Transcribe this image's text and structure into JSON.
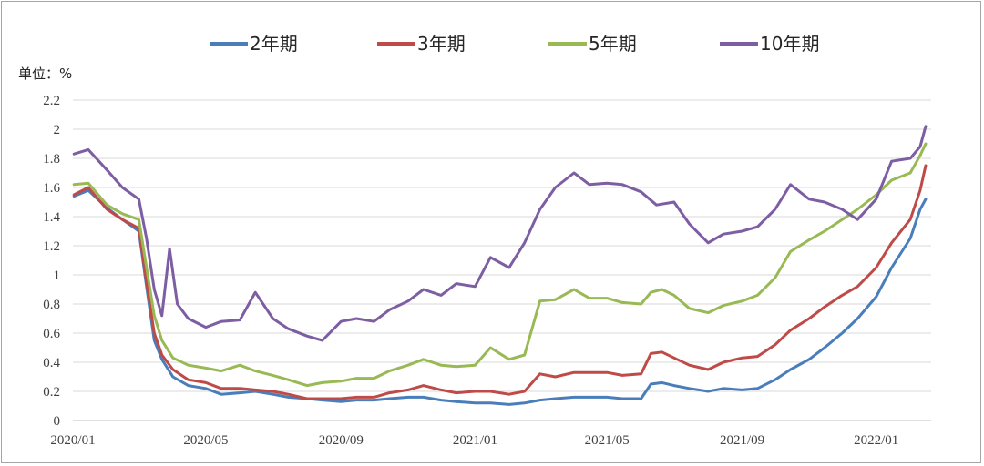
{
  "chart_data": {
    "type": "line",
    "unit_label": "单位：%",
    "x_tick_labels": [
      "2020/01",
      "2020/05",
      "2020/09",
      "2021/01",
      "2021/05",
      "2021/09",
      "2022/01"
    ],
    "x_range": [
      "2020-01",
      "2022-02"
    ],
    "ylim": [
      0,
      2.2
    ],
    "y_ticks": [
      "0",
      "0.2",
      "0.4",
      "0.6",
      "0.8",
      "1",
      "1.2",
      "1.4",
      "1.6",
      "1.8",
      "2",
      "2.2"
    ],
    "grid": "horizontal",
    "legend_position": "top",
    "series": [
      {
        "name": "2年期",
        "color": "#4a7ebb",
        "points": [
          [
            "2020-01-02",
            1.54
          ],
          [
            "2020-01-15",
            1.58
          ],
          [
            "2020-02-01",
            1.46
          ],
          [
            "2020-02-15",
            1.38
          ],
          [
            "2020-03-01",
            1.3
          ],
          [
            "2020-03-08",
            0.92
          ],
          [
            "2020-03-15",
            0.55
          ],
          [
            "2020-03-22",
            0.42
          ],
          [
            "2020-04-01",
            0.3
          ],
          [
            "2020-04-15",
            0.24
          ],
          [
            "2020-05-01",
            0.22
          ],
          [
            "2020-05-15",
            0.18
          ],
          [
            "2020-06-01",
            0.19
          ],
          [
            "2020-06-15",
            0.2
          ],
          [
            "2020-07-01",
            0.18
          ],
          [
            "2020-07-15",
            0.16
          ],
          [
            "2020-08-01",
            0.15
          ],
          [
            "2020-08-15",
            0.14
          ],
          [
            "2020-09-01",
            0.13
          ],
          [
            "2020-09-15",
            0.14
          ],
          [
            "2020-10-01",
            0.14
          ],
          [
            "2020-10-15",
            0.15
          ],
          [
            "2020-11-01",
            0.16
          ],
          [
            "2020-11-15",
            0.16
          ],
          [
            "2020-12-01",
            0.14
          ],
          [
            "2020-12-15",
            0.13
          ],
          [
            "2021-01-01",
            0.12
          ],
          [
            "2021-01-15",
            0.12
          ],
          [
            "2021-02-01",
            0.11
          ],
          [
            "2021-02-15",
            0.12
          ],
          [
            "2021-03-01",
            0.14
          ],
          [
            "2021-03-15",
            0.15
          ],
          [
            "2021-04-01",
            0.16
          ],
          [
            "2021-04-15",
            0.16
          ],
          [
            "2021-05-01",
            0.16
          ],
          [
            "2021-05-15",
            0.15
          ],
          [
            "2021-06-01",
            0.15
          ],
          [
            "2021-06-10",
            0.25
          ],
          [
            "2021-06-20",
            0.26
          ],
          [
            "2021-07-01",
            0.24
          ],
          [
            "2021-07-15",
            0.22
          ],
          [
            "2021-08-01",
            0.2
          ],
          [
            "2021-08-15",
            0.22
          ],
          [
            "2021-09-01",
            0.21
          ],
          [
            "2021-09-15",
            0.22
          ],
          [
            "2021-10-01",
            0.28
          ],
          [
            "2021-10-15",
            0.35
          ],
          [
            "2021-11-01",
            0.42
          ],
          [
            "2021-11-15",
            0.5
          ],
          [
            "2021-12-01",
            0.6
          ],
          [
            "2021-12-15",
            0.7
          ],
          [
            "2022-01-01",
            0.85
          ],
          [
            "2022-01-15",
            1.05
          ],
          [
            "2022-02-01",
            1.25
          ],
          [
            "2022-02-10",
            1.45
          ],
          [
            "2022-02-15",
            1.52
          ]
        ]
      },
      {
        "name": "3年期",
        "color": "#be4b48",
        "points": [
          [
            "2020-01-02",
            1.55
          ],
          [
            "2020-01-15",
            1.6
          ],
          [
            "2020-02-01",
            1.45
          ],
          [
            "2020-02-15",
            1.38
          ],
          [
            "2020-03-01",
            1.32
          ],
          [
            "2020-03-08",
            0.95
          ],
          [
            "2020-03-15",
            0.6
          ],
          [
            "2020-03-22",
            0.45
          ],
          [
            "2020-04-01",
            0.35
          ],
          [
            "2020-04-15",
            0.28
          ],
          [
            "2020-05-01",
            0.26
          ],
          [
            "2020-05-15",
            0.22
          ],
          [
            "2020-06-01",
            0.22
          ],
          [
            "2020-06-15",
            0.21
          ],
          [
            "2020-07-01",
            0.2
          ],
          [
            "2020-07-15",
            0.18
          ],
          [
            "2020-08-01",
            0.15
          ],
          [
            "2020-08-15",
            0.15
          ],
          [
            "2020-09-01",
            0.15
          ],
          [
            "2020-09-15",
            0.16
          ],
          [
            "2020-10-01",
            0.16
          ],
          [
            "2020-10-15",
            0.19
          ],
          [
            "2020-11-01",
            0.21
          ],
          [
            "2020-11-15",
            0.24
          ],
          [
            "2020-12-01",
            0.21
          ],
          [
            "2020-12-15",
            0.19
          ],
          [
            "2021-01-01",
            0.2
          ],
          [
            "2021-01-15",
            0.2
          ],
          [
            "2021-02-01",
            0.18
          ],
          [
            "2021-02-15",
            0.2
          ],
          [
            "2021-03-01",
            0.32
          ],
          [
            "2021-03-15",
            0.3
          ],
          [
            "2021-04-01",
            0.33
          ],
          [
            "2021-04-15",
            0.33
          ],
          [
            "2021-05-01",
            0.33
          ],
          [
            "2021-05-15",
            0.31
          ],
          [
            "2021-06-01",
            0.32
          ],
          [
            "2021-06-10",
            0.46
          ],
          [
            "2021-06-20",
            0.47
          ],
          [
            "2021-07-01",
            0.43
          ],
          [
            "2021-07-15",
            0.38
          ],
          [
            "2021-08-01",
            0.35
          ],
          [
            "2021-08-15",
            0.4
          ],
          [
            "2021-09-01",
            0.43
          ],
          [
            "2021-09-15",
            0.44
          ],
          [
            "2021-10-01",
            0.52
          ],
          [
            "2021-10-15",
            0.62
          ],
          [
            "2021-11-01",
            0.7
          ],
          [
            "2021-11-15",
            0.78
          ],
          [
            "2021-12-01",
            0.86
          ],
          [
            "2021-12-15",
            0.92
          ],
          [
            "2022-01-01",
            1.05
          ],
          [
            "2022-01-15",
            1.22
          ],
          [
            "2022-02-01",
            1.38
          ],
          [
            "2022-02-10",
            1.58
          ],
          [
            "2022-02-15",
            1.75
          ]
        ]
      },
      {
        "name": "5年期",
        "color": "#98b954",
        "points": [
          [
            "2020-01-02",
            1.62
          ],
          [
            "2020-01-15",
            1.63
          ],
          [
            "2020-02-01",
            1.48
          ],
          [
            "2020-02-15",
            1.42
          ],
          [
            "2020-03-01",
            1.38
          ],
          [
            "2020-03-08",
            1.05
          ],
          [
            "2020-03-15",
            0.72
          ],
          [
            "2020-03-22",
            0.55
          ],
          [
            "2020-04-01",
            0.43
          ],
          [
            "2020-04-15",
            0.38
          ],
          [
            "2020-05-01",
            0.36
          ],
          [
            "2020-05-15",
            0.34
          ],
          [
            "2020-06-01",
            0.38
          ],
          [
            "2020-06-15",
            0.34
          ],
          [
            "2020-07-01",
            0.31
          ],
          [
            "2020-07-15",
            0.28
          ],
          [
            "2020-08-01",
            0.24
          ],
          [
            "2020-08-15",
            0.26
          ],
          [
            "2020-09-01",
            0.27
          ],
          [
            "2020-09-15",
            0.29
          ],
          [
            "2020-10-01",
            0.29
          ],
          [
            "2020-10-15",
            0.34
          ],
          [
            "2020-11-01",
            0.38
          ],
          [
            "2020-11-15",
            0.42
          ],
          [
            "2020-12-01",
            0.38
          ],
          [
            "2020-12-15",
            0.37
          ],
          [
            "2021-01-01",
            0.38
          ],
          [
            "2021-01-15",
            0.5
          ],
          [
            "2021-02-01",
            0.42
          ],
          [
            "2021-02-15",
            0.45
          ],
          [
            "2021-03-01",
            0.82
          ],
          [
            "2021-03-15",
            0.83
          ],
          [
            "2021-04-01",
            0.9
          ],
          [
            "2021-04-15",
            0.84
          ],
          [
            "2021-05-01",
            0.84
          ],
          [
            "2021-05-15",
            0.81
          ],
          [
            "2021-06-01",
            0.8
          ],
          [
            "2021-06-10",
            0.88
          ],
          [
            "2021-06-20",
            0.9
          ],
          [
            "2021-07-01",
            0.86
          ],
          [
            "2021-07-15",
            0.77
          ],
          [
            "2021-08-01",
            0.74
          ],
          [
            "2021-08-15",
            0.79
          ],
          [
            "2021-09-01",
            0.82
          ],
          [
            "2021-09-15",
            0.86
          ],
          [
            "2021-10-01",
            0.98
          ],
          [
            "2021-10-15",
            1.16
          ],
          [
            "2021-11-01",
            1.24
          ],
          [
            "2021-11-15",
            1.3
          ],
          [
            "2021-12-01",
            1.38
          ],
          [
            "2021-12-15",
            1.45
          ],
          [
            "2022-01-01",
            1.55
          ],
          [
            "2022-01-15",
            1.65
          ],
          [
            "2022-02-01",
            1.7
          ],
          [
            "2022-02-10",
            1.82
          ],
          [
            "2022-02-15",
            1.9
          ]
        ]
      },
      {
        "name": "10年期",
        "color": "#7e5ea3",
        "points": [
          [
            "2020-01-02",
            1.83
          ],
          [
            "2020-01-15",
            1.86
          ],
          [
            "2020-02-01",
            1.72
          ],
          [
            "2020-02-15",
            1.6
          ],
          [
            "2020-03-01",
            1.52
          ],
          [
            "2020-03-08",
            1.25
          ],
          [
            "2020-03-15",
            0.9
          ],
          [
            "2020-03-22",
            0.72
          ],
          [
            "2020-03-29",
            1.18
          ],
          [
            "2020-04-05",
            0.8
          ],
          [
            "2020-04-15",
            0.7
          ],
          [
            "2020-05-01",
            0.64
          ],
          [
            "2020-05-15",
            0.68
          ],
          [
            "2020-06-01",
            0.69
          ],
          [
            "2020-06-15",
            0.88
          ],
          [
            "2020-07-01",
            0.7
          ],
          [
            "2020-07-15",
            0.63
          ],
          [
            "2020-08-01",
            0.58
          ],
          [
            "2020-08-15",
            0.55
          ],
          [
            "2020-09-01",
            0.68
          ],
          [
            "2020-09-15",
            0.7
          ],
          [
            "2020-10-01",
            0.68
          ],
          [
            "2020-10-15",
            0.76
          ],
          [
            "2020-11-01",
            0.82
          ],
          [
            "2020-11-15",
            0.9
          ],
          [
            "2020-12-01",
            0.86
          ],
          [
            "2020-12-15",
            0.94
          ],
          [
            "2021-01-01",
            0.92
          ],
          [
            "2021-01-15",
            1.12
          ],
          [
            "2021-02-01",
            1.05
          ],
          [
            "2021-02-15",
            1.22
          ],
          [
            "2021-03-01",
            1.45
          ],
          [
            "2021-03-15",
            1.6
          ],
          [
            "2021-04-01",
            1.7
          ],
          [
            "2021-04-15",
            1.62
          ],
          [
            "2021-05-01",
            1.63
          ],
          [
            "2021-05-15",
            1.62
          ],
          [
            "2021-06-01",
            1.57
          ],
          [
            "2021-06-15",
            1.48
          ],
          [
            "2021-07-01",
            1.5
          ],
          [
            "2021-07-15",
            1.35
          ],
          [
            "2021-08-01",
            1.22
          ],
          [
            "2021-08-15",
            1.28
          ],
          [
            "2021-09-01",
            1.3
          ],
          [
            "2021-09-15",
            1.33
          ],
          [
            "2021-10-01",
            1.45
          ],
          [
            "2021-10-15",
            1.62
          ],
          [
            "2021-11-01",
            1.52
          ],
          [
            "2021-11-15",
            1.5
          ],
          [
            "2021-12-01",
            1.45
          ],
          [
            "2021-12-15",
            1.38
          ],
          [
            "2022-01-01",
            1.52
          ],
          [
            "2022-01-15",
            1.78
          ],
          [
            "2022-02-01",
            1.8
          ],
          [
            "2022-02-10",
            1.88
          ],
          [
            "2022-02-15",
            2.02
          ]
        ]
      }
    ]
  }
}
